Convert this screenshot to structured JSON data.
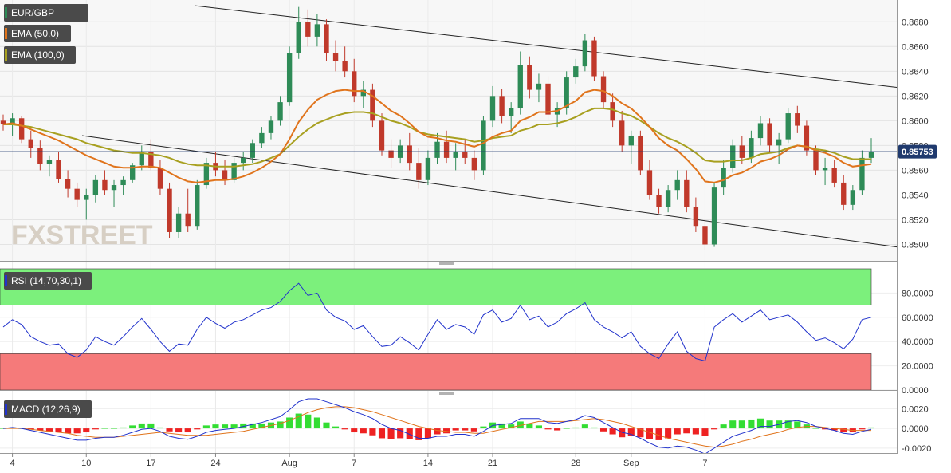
{
  "chart_data": [
    {
      "type": "candlestick",
      "series": [
        {
          "name": "EUR/GBP"
        },
        {
          "name": "EMA (50,0)",
          "color": "#e0741c"
        },
        {
          "name": "EMA (100,0)",
          "color": "#a8a020"
        }
      ],
      "last_price_label": "0.85753",
      "ylim": [
        0.849,
        0.8695
      ],
      "y_ticks": [
        "0.8500",
        "0.8520",
        "0.8540",
        "0.8560",
        "0.8580",
        "0.8600",
        "0.8620",
        "0.8640",
        "0.8660",
        "0.8680"
      ],
      "y_tick_values": [
        0.85,
        0.852,
        0.854,
        0.856,
        0.858,
        0.86,
        0.862,
        0.864,
        0.866,
        0.868
      ],
      "colors": {
        "up": "#2e8b57",
        "down": "#c0392b",
        "ema50": "#e0741c",
        "ema100": "#a8a020",
        "last_price_line": "#1f3a6e",
        "trend_line": "#222222"
      },
      "candles": [
        [
          0.86,
          0.8605,
          0.8592,
          0.8597
        ],
        [
          0.8597,
          0.8606,
          0.8588,
          0.8602
        ],
        [
          0.8602,
          0.8604,
          0.8582,
          0.8585
        ],
        [
          0.8585,
          0.8592,
          0.857,
          0.8578
        ],
        [
          0.8578,
          0.8584,
          0.856,
          0.8565
        ],
        [
          0.8565,
          0.8572,
          0.8555,
          0.8568
        ],
        [
          0.8568,
          0.8575,
          0.855,
          0.8553
        ],
        [
          0.8553,
          0.856,
          0.8538,
          0.8545
        ],
        [
          0.8545,
          0.855,
          0.853,
          0.8536
        ],
        [
          0.8536,
          0.8545,
          0.852,
          0.854
        ],
        [
          0.854,
          0.8556,
          0.8534,
          0.8552
        ],
        [
          0.8552,
          0.856,
          0.854,
          0.8544
        ],
        [
          0.8544,
          0.8552,
          0.853,
          0.8548
        ],
        [
          0.8548,
          0.8555,
          0.854,
          0.8552
        ],
        [
          0.8552,
          0.8566,
          0.855,
          0.8564
        ],
        [
          0.8564,
          0.858,
          0.856,
          0.8575
        ],
        [
          0.8575,
          0.8585,
          0.856,
          0.8562
        ],
        [
          0.8562,
          0.8568,
          0.854,
          0.8545
        ],
        [
          0.8545,
          0.855,
          0.8505,
          0.851
        ],
        [
          0.851,
          0.853,
          0.8505,
          0.8525
        ],
        [
          0.8525,
          0.8545,
          0.851,
          0.8515
        ],
        [
          0.8515,
          0.8552,
          0.8512,
          0.8548
        ],
        [
          0.8548,
          0.857,
          0.8545,
          0.8566
        ],
        [
          0.8566,
          0.8575,
          0.8555,
          0.856
        ],
        [
          0.856,
          0.8568,
          0.8548,
          0.8552
        ],
        [
          0.8552,
          0.857,
          0.855,
          0.8566
        ],
        [
          0.8566,
          0.8575,
          0.856,
          0.857
        ],
        [
          0.857,
          0.8585,
          0.8566,
          0.8582
        ],
        [
          0.8582,
          0.8595,
          0.8578,
          0.859
        ],
        [
          0.859,
          0.8604,
          0.8585,
          0.86
        ],
        [
          0.86,
          0.862,
          0.8596,
          0.8615
        ],
        [
          0.8615,
          0.866,
          0.8612,
          0.8655
        ],
        [
          0.8655,
          0.8692,
          0.865,
          0.868
        ],
        [
          0.868,
          0.869,
          0.866,
          0.8668
        ],
        [
          0.8668,
          0.8686,
          0.866,
          0.8678
        ],
        [
          0.8678,
          0.8682,
          0.8648,
          0.8655
        ],
        [
          0.8655,
          0.8665,
          0.864,
          0.8648
        ],
        [
          0.8648,
          0.866,
          0.8635,
          0.864
        ],
        [
          0.864,
          0.865,
          0.8615,
          0.862
        ],
        [
          0.862,
          0.8632,
          0.861,
          0.8625
        ],
        [
          0.8625,
          0.863,
          0.8595,
          0.86
        ],
        [
          0.86,
          0.8606,
          0.8572,
          0.8576
        ],
        [
          0.8576,
          0.8585,
          0.8562,
          0.857
        ],
        [
          0.857,
          0.8585,
          0.8566,
          0.858
        ],
        [
          0.858,
          0.859,
          0.856,
          0.8566
        ],
        [
          0.8566,
          0.8578,
          0.8545,
          0.8552
        ],
        [
          0.8552,
          0.8576,
          0.8548,
          0.857
        ],
        [
          0.857,
          0.859,
          0.8565,
          0.8583
        ],
        [
          0.8583,
          0.8592,
          0.8566,
          0.857
        ],
        [
          0.857,
          0.8582,
          0.856,
          0.8575
        ],
        [
          0.8575,
          0.8585,
          0.8565,
          0.857
        ],
        [
          0.857,
          0.8576,
          0.8552,
          0.856
        ],
        [
          0.856,
          0.8604,
          0.8556,
          0.86
        ],
        [
          0.86,
          0.8628,
          0.8595,
          0.862
        ],
        [
          0.862,
          0.8626,
          0.8598,
          0.8604
        ],
        [
          0.8604,
          0.8615,
          0.859,
          0.861
        ],
        [
          0.861,
          0.8656,
          0.8605,
          0.8645
        ],
        [
          0.8645,
          0.8652,
          0.8618,
          0.8625
        ],
        [
          0.8625,
          0.8638,
          0.8615,
          0.863
        ],
        [
          0.863,
          0.8636,
          0.86,
          0.8605
        ],
        [
          0.8605,
          0.8615,
          0.8595,
          0.861
        ],
        [
          0.861,
          0.864,
          0.8605,
          0.8635
        ],
        [
          0.8635,
          0.865,
          0.863,
          0.8644
        ],
        [
          0.8644,
          0.867,
          0.864,
          0.8665
        ],
        [
          0.8665,
          0.8668,
          0.8632,
          0.8636
        ],
        [
          0.8636,
          0.864,
          0.861,
          0.8615
        ],
        [
          0.8615,
          0.8622,
          0.8595,
          0.86
        ],
        [
          0.86,
          0.8608,
          0.8575,
          0.858
        ],
        [
          0.858,
          0.8592,
          0.8565,
          0.8588
        ],
        [
          0.8588,
          0.8592,
          0.8556,
          0.856
        ],
        [
          0.856,
          0.8568,
          0.8536,
          0.854
        ],
        [
          0.854,
          0.8545,
          0.8525,
          0.853
        ],
        [
          0.853,
          0.8548,
          0.8526,
          0.8544
        ],
        [
          0.8544,
          0.856,
          0.8536,
          0.8552
        ],
        [
          0.8552,
          0.856,
          0.8526,
          0.853
        ],
        [
          0.853,
          0.8538,
          0.851,
          0.8515
        ],
        [
          0.8515,
          0.852,
          0.8495,
          0.85
        ],
        [
          0.85,
          0.855,
          0.8498,
          0.8546
        ],
        [
          0.8546,
          0.8568,
          0.854,
          0.8562
        ],
        [
          0.8562,
          0.8585,
          0.8558,
          0.858
        ],
        [
          0.858,
          0.8588,
          0.8565,
          0.857
        ],
        [
          0.857,
          0.8592,
          0.8566,
          0.8586
        ],
        [
          0.8586,
          0.8604,
          0.858,
          0.8598
        ],
        [
          0.8598,
          0.8602,
          0.8575,
          0.858
        ],
        [
          0.858,
          0.859,
          0.8565,
          0.8585
        ],
        [
          0.8585,
          0.861,
          0.8582,
          0.8606
        ],
        [
          0.8606,
          0.8612,
          0.859,
          0.8596
        ],
        [
          0.8596,
          0.86,
          0.8572,
          0.8576
        ],
        [
          0.8576,
          0.858,
          0.8556,
          0.856
        ],
        [
          0.856,
          0.857,
          0.8548,
          0.8562
        ],
        [
          0.8562,
          0.8568,
          0.8546,
          0.855
        ],
        [
          0.855,
          0.8556,
          0.8528,
          0.8532
        ],
        [
          0.8532,
          0.8548,
          0.8528,
          0.8544
        ],
        [
          0.8544,
          0.8576,
          0.854,
          0.857
        ],
        [
          0.857,
          0.8586,
          0.8566,
          0.8575
        ]
      ],
      "ema50": [
        0.8597,
        0.8598,
        0.8596,
        0.8593,
        0.859,
        0.8587,
        0.8584,
        0.858,
        0.8576,
        0.8572,
        0.8569,
        0.8566,
        0.8563,
        0.8562,
        0.8562,
        0.8563,
        0.8563,
        0.8562,
        0.8558,
        0.8554,
        0.8551,
        0.855,
        0.8551,
        0.8552,
        0.8552,
        0.8553,
        0.8555,
        0.8558,
        0.8562,
        0.8567,
        0.8573,
        0.8585,
        0.8599,
        0.8609,
        0.8617,
        0.8621,
        0.8624,
        0.8625,
        0.8624,
        0.8624,
        0.862,
        0.8614,
        0.8608,
        0.8604,
        0.8598,
        0.8591,
        0.8587,
        0.8586,
        0.8584,
        0.8583,
        0.8581,
        0.8579,
        0.8582,
        0.8587,
        0.859,
        0.8592,
        0.86,
        0.8603,
        0.8607,
        0.8607,
        0.8608,
        0.8612,
        0.8616,
        0.8623,
        0.8625,
        0.8624,
        0.862,
        0.8614,
        0.861,
        0.8603,
        0.8595,
        0.8586,
        0.858,
        0.8576,
        0.8569,
        0.8561,
        0.8551,
        0.855,
        0.8552,
        0.8556,
        0.8558,
        0.8562,
        0.8567,
        0.8569,
        0.8572,
        0.8577,
        0.858,
        0.8579,
        0.8576,
        0.8574,
        0.8571,
        0.8566,
        0.8563,
        0.8564,
        0.8565
      ],
      "ema100": [
        0.8597,
        0.8597,
        0.8596,
        0.8595,
        0.8593,
        0.8591,
        0.8589,
        0.8587,
        0.8585,
        0.8582,
        0.858,
        0.8578,
        0.8576,
        0.8575,
        0.8574,
        0.8574,
        0.8573,
        0.8572,
        0.857,
        0.8567,
        0.8565,
        0.8564,
        0.8564,
        0.8563,
        0.8563,
        0.8563,
        0.8564,
        0.8565,
        0.8567,
        0.857,
        0.8573,
        0.858,
        0.8587,
        0.8593,
        0.8598,
        0.8601,
        0.8604,
        0.8606,
        0.8607,
        0.8607,
        0.8606,
        0.8603,
        0.86,
        0.8598,
        0.8595,
        0.8591,
        0.8589,
        0.8588,
        0.8587,
        0.8586,
        0.8585,
        0.8583,
        0.8584,
        0.8586,
        0.8587,
        0.8588,
        0.8592,
        0.8594,
        0.8597,
        0.8597,
        0.8598,
        0.86,
        0.8603,
        0.8607,
        0.861,
        0.861,
        0.8609,
        0.8606,
        0.8604,
        0.86,
        0.8595,
        0.859,
        0.8586,
        0.8583,
        0.8579,
        0.8574,
        0.8568,
        0.8567,
        0.8567,
        0.8568,
        0.8568,
        0.857,
        0.8573,
        0.8574,
        0.8575,
        0.8578,
        0.858,
        0.8579,
        0.8577,
        0.8576,
        0.8574,
        0.8571,
        0.8569,
        0.8569,
        0.8569
      ],
      "trend_lines": [
        {
          "from": [
            0.8693
          ],
          "to": [
            0.8627
          ]
        },
        {
          "from": [
            0.8588
          ],
          "to": [
            0.8498
          ]
        }
      ]
    },
    {
      "type": "line",
      "series": [
        {
          "name": "RSI (14,70,30,1)",
          "color": "#2233cc"
        }
      ],
      "ylim": [
        0,
        100
      ],
      "y_ticks": [
        "0.0000",
        "20.0000",
        "40.0000",
        "60.0000",
        "80.0000"
      ],
      "y_tick_values": [
        0,
        20,
        40,
        60,
        80
      ],
      "overbought": 70,
      "oversold": 30,
      "colors": {
        "overbought_zone": "#7cf07c",
        "oversold_zone": "#f57a7a"
      },
      "values": [
        52,
        58,
        54,
        44,
        40,
        37,
        38,
        30,
        27,
        33,
        44,
        40,
        37,
        44,
        52,
        59,
        50,
        40,
        32,
        38,
        37,
        50,
        60,
        55,
        51,
        56,
        58,
        62,
        66,
        68,
        73,
        82,
        88,
        78,
        80,
        66,
        60,
        57,
        50,
        53,
        44,
        36,
        37,
        44,
        39,
        33,
        46,
        58,
        50,
        54,
        52,
        46,
        62,
        66,
        56,
        59,
        70,
        58,
        61,
        52,
        56,
        63,
        67,
        72,
        58,
        52,
        48,
        43,
        48,
        36,
        30,
        26,
        38,
        48,
        32,
        26,
        24,
        52,
        58,
        63,
        56,
        61,
        66,
        58,
        60,
        62,
        56,
        48,
        41,
        43,
        39,
        34,
        42,
        58,
        60
      ]
    },
    {
      "type": "bar",
      "series": [
        {
          "name": "MACD (12,26,9)",
          "color": "#2233cc"
        },
        {
          "color": "#e0741c"
        }
      ],
      "ylim": [
        -0.0025,
        0.003
      ],
      "y_ticks": [
        "-0.0020",
        "0.0000",
        "0.0020"
      ],
      "y_tick_values": [
        -0.002,
        0,
        0.002
      ],
      "colors": {
        "hist_up": "#33dd33",
        "hist_down": "#ee2222"
      },
      "macd": [
        0.0,
        0.0001,
        0.0,
        -0.0002,
        -0.0004,
        -0.0006,
        -0.0008,
        -0.001,
        -0.0012,
        -0.0012,
        -0.001,
        -0.0009,
        -0.0009,
        -0.0007,
        -0.0004,
        -0.0001,
        0.0,
        -0.0003,
        -0.0008,
        -0.001,
        -0.0011,
        -0.0008,
        -0.0004,
        -0.0002,
        -0.0001,
        0.0,
        0.0002,
        0.0004,
        0.0006,
        0.0009,
        0.0012,
        0.0019,
        0.0027,
        0.003,
        0.003,
        0.0027,
        0.0024,
        0.0021,
        0.0017,
        0.0014,
        0.001,
        0.0004,
        0.0,
        -0.0002,
        -0.0006,
        -0.001,
        -0.001,
        -0.0008,
        -0.0008,
        -0.0006,
        -0.0006,
        -0.0008,
        -0.0003,
        0.0003,
        0.0004,
        0.0005,
        0.001,
        0.001,
        0.001,
        0.0006,
        0.0005,
        0.0007,
        0.0009,
        0.0013,
        0.0011,
        0.0006,
        0.0001,
        -0.0004,
        -0.0006,
        -0.001,
        -0.0015,
        -0.0019,
        -0.002,
        -0.0018,
        -0.0019,
        -0.0022,
        -0.0026,
        -0.002,
        -0.0014,
        -0.0008,
        -0.0005,
        -0.0002,
        0.0002,
        0.0002,
        0.0004,
        0.0007,
        0.0008,
        0.0006,
        0.0002,
        0.0,
        -0.0002,
        -0.0005,
        -0.0006,
        -0.0003,
        -0.0001
      ],
      "signal": [
        0.0,
        0.0,
        0.0,
        -0.0001,
        -0.0002,
        -0.0003,
        -0.0004,
        -0.0005,
        -0.0007,
        -0.0008,
        -0.0009,
        -0.0009,
        -0.0009,
        -0.0008,
        -0.0007,
        -0.0006,
        -0.0005,
        -0.0004,
        -0.0005,
        -0.0006,
        -0.0007,
        -0.0007,
        -0.0007,
        -0.0006,
        -0.0005,
        -0.0004,
        -0.0003,
        -0.0001,
        0.0001,
        0.0003,
        0.0005,
        0.0008,
        0.0012,
        0.0016,
        0.0019,
        0.0021,
        0.0022,
        0.0022,
        0.0021,
        0.0019,
        0.0017,
        0.0014,
        0.0011,
        0.0008,
        0.0005,
        0.0002,
        0.0,
        -0.0002,
        -0.0003,
        -0.0004,
        -0.0004,
        -0.0005,
        -0.0005,
        -0.0003,
        -0.0001,
        0.0001,
        0.0003,
        0.0005,
        0.0007,
        0.0007,
        0.0007,
        0.0007,
        0.0008,
        0.0009,
        0.001,
        0.0009,
        0.0007,
        0.0005,
        0.0002,
        -0.0001,
        -0.0004,
        -0.0007,
        -0.001,
        -0.0012,
        -0.0014,
        -0.0016,
        -0.0018,
        -0.0019,
        -0.0018,
        -0.0016,
        -0.0013,
        -0.0011,
        -0.0008,
        -0.0006,
        -0.0004,
        -0.0001,
        0.0001,
        0.0002,
        0.0002,
        0.0001,
        0.0,
        -0.0001,
        -0.0002,
        -0.0002,
        -0.0002
      ]
    }
  ],
  "x_ticks": [
    {
      "label": "4",
      "i": 1
    },
    {
      "label": "10",
      "i": 9
    },
    {
      "label": "17",
      "i": 16
    },
    {
      "label": "24",
      "i": 23
    },
    {
      "label": "Aug",
      "i": 31
    },
    {
      "label": "7",
      "i": 38
    },
    {
      "label": "14",
      "i": 46
    },
    {
      "label": "21",
      "i": 53
    },
    {
      "label": "28",
      "i": 62
    },
    {
      "label": "Sep",
      "i": 68
    },
    {
      "label": "7",
      "i": 76
    }
  ],
  "watermark": "FXSTREET"
}
